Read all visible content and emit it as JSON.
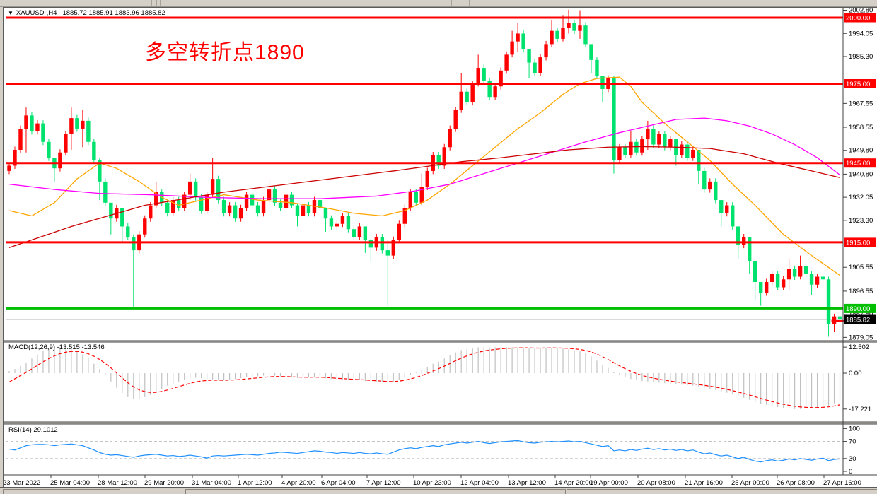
{
  "title_bar": {
    "collapse_icon": "▼",
    "symbol": "XAUUSD-,H4",
    "quotes": "1885.72 1885.91 1883.96 1885.82"
  },
  "annotation": {
    "text": "多空转折点1890",
    "color": "#FF0000"
  },
  "colors": {
    "bull": "#FF0000",
    "bear": "#00E26E",
    "ma_fast": "#FFA500",
    "ma_mid": "#FF00FF",
    "ma_slow": "#CC0000",
    "macd_hist": "#C0C0C0",
    "macd_signal": "#FF0000",
    "rsi": "#1E8FFF",
    "guide": "#BBBBBB",
    "level_red": "#FF0000",
    "level_green": "#00BE00",
    "current_line": "#B4B4B4",
    "badge_current_bg": "#000000",
    "axis_text": "#000000"
  },
  "price_axis": {
    "ticks": [
      "2002.80",
      "1994.05",
      "1985.30",
      "1967.55",
      "1958.55",
      "1949.80",
      "1940.80",
      "1932.05",
      "1923.30",
      "1905.55",
      "1896.55",
      "1887.80",
      "1879.05"
    ],
    "tick_values": [
      2002.8,
      1994.05,
      1985.3,
      1967.55,
      1958.55,
      1949.8,
      1940.8,
      1932.05,
      1923.3,
      1905.55,
      1896.55,
      1887.8,
      1879.05
    ]
  },
  "levels": [
    {
      "value": 2000.0,
      "label": "2000.00",
      "color": "#FF0000"
    },
    {
      "value": 1975.0,
      "label": "1975.00",
      "color": "#FF0000"
    },
    {
      "value": 1945.0,
      "label": "1945.00",
      "color": "#FF0000"
    },
    {
      "value": 1915.0,
      "label": "1915.00",
      "color": "#FF0000"
    },
    {
      "value": 1890.0,
      "label": "1890.00",
      "color": "#00BE00"
    }
  ],
  "current_price": {
    "value": 1885.82,
    "label": "1885.82"
  },
  "macd_panel": {
    "label": "MACD(12,26,9) -13.515 -13.546",
    "axis_labels": [
      "12.502",
      "0.00",
      "-17.221"
    ],
    "axis_values": [
      12.502,
      0,
      -17.221
    ]
  },
  "rsi_panel": {
    "label": "RSI(14) 29.1012",
    "axis_labels": [
      "100",
      "70",
      "30",
      "0"
    ],
    "axis_values": [
      100,
      70,
      30,
      0
    ],
    "guides": [
      70,
      30
    ]
  },
  "time_axis": {
    "labels": [
      [
        "23 Mar 2022",
        3
      ],
      [
        "25 Mar 04:00",
        70
      ],
      [
        "28 Mar 12:00",
        137
      ],
      [
        "29 Mar 20:00",
        203
      ],
      [
        "31 Mar 04:00",
        270
      ],
      [
        "1 Apr 12:00",
        335
      ],
      [
        "4 Apr 20:00",
        397
      ],
      [
        "6 Apr 04:00",
        453
      ],
      [
        "7 Apr 12:00",
        517
      ],
      [
        "10 Apr 23:00",
        583
      ],
      [
        "12 Apr 04:00",
        650
      ],
      [
        "13 Apr 12:00",
        717
      ],
      [
        "14 Apr 20:00",
        783
      ],
      [
        "19 Apr 00:00",
        833
      ],
      [
        "20 Apr 08:00",
        900
      ],
      [
        "21 Apr 16:00",
        967
      ],
      [
        "25 Apr 00:00",
        1033
      ],
      [
        "26 Apr 08:00",
        1097
      ],
      [
        "27 Apr 16:00",
        1163
      ]
    ]
  },
  "chart_data": {
    "type": "candlestick+indicators",
    "symbol": "XAUUSD",
    "timeframe": "H4",
    "price_range": [
      1878.8,
      2004.5
    ],
    "first_open": 1942,
    "candles_close": [
      1944,
      1950,
      1958,
      1963,
      1957,
      1960,
      1953,
      1947,
      1943,
      1949,
      1956,
      1962,
      1958,
      1961,
      1953,
      1946,
      1938,
      1930,
      1924,
      1928,
      1921,
      1917,
      1912,
      1918,
      1924,
      1929,
      1934,
      1930,
      1926,
      1931,
      1928,
      1933,
      1938,
      1932,
      1927,
      1933,
      1939,
      1931,
      1926,
      1929,
      1924,
      1928,
      1933,
      1929,
      1926,
      1931,
      1935,
      1930,
      1928,
      1933,
      1929,
      1925,
      1929,
      1926,
      1931,
      1928,
      1924,
      1921,
      1922,
      1925,
      1920,
      1917,
      1921,
      1916,
      1913,
      1917,
      1912,
      1910,
      1916,
      1922,
      1928,
      1934,
      1930,
      1936,
      1942,
      1948,
      1944,
      1951,
      1958,
      1965,
      1972,
      1968,
      1975,
      1981,
      1976,
      1970,
      1974,
      1980,
      1986,
      1991,
      1994,
      1988,
      1983,
      1979,
      1985,
      1990,
      1995,
      1992,
      1996,
      1998,
      1995,
      1997,
      1990,
      1984,
      1978,
      1973,
      1977,
      1946,
      1951,
      1948,
      1953,
      1949,
      1954,
      1958,
      1952,
      1956,
      1951,
      1954,
      1948,
      1952,
      1947,
      1950,
      1942,
      1935,
      1938,
      1931,
      1926,
      1929,
      1921,
      1914,
      1917,
      1908,
      1900,
      1896,
      1900,
      1903,
      1898,
      1901,
      1905,
      1902,
      1906,
      1903,
      1899,
      1902,
      1901,
      1884,
      1887,
      1885.8
    ],
    "wick_overrides": {
      "3": [
        1966,
        1949
      ],
      "8": [
        1944.5,
        1938
      ],
      "11": [
        1966,
        1950
      ],
      "13": [
        1965,
        1951
      ],
      "16": [
        1947,
        1931
      ],
      "18": [
        1929,
        1918
      ],
      "20": [
        1927,
        1915
      ],
      "22": [
        1918,
        1890.5
      ],
      "26": [
        1938,
        1928
      ],
      "32": [
        1941,
        1931
      ],
      "36": [
        1947,
        1932
      ],
      "46": [
        1939,
        1929
      ],
      "51": [
        1929.5,
        1921
      ],
      "56": [
        1927.5,
        1919
      ],
      "63": [
        1921,
        1911
      ],
      "64": [
        1916.5,
        1908
      ],
      "67": [
        1916,
        1891
      ],
      "73": [
        1941,
        1929
      ],
      "80": [
        1979,
        1964
      ],
      "83": [
        1986,
        1974
      ],
      "89": [
        1995,
        1985
      ],
      "90": [
        1998,
        1987
      ],
      "92": [
        1988,
        1977
      ],
      "96": [
        1999,
        1989
      ],
      "98": [
        2001,
        1991
      ],
      "99": [
        2003,
        1994
      ],
      "101": [
        2002.8,
        1992
      ],
      "103": [
        1990,
        1979
      ],
      "105": [
        1978,
        1968
      ],
      "107": [
        1978,
        1941
      ],
      "110": [
        1957,
        1947
      ],
      "113": [
        1961,
        1950
      ],
      "118": [
        1953,
        1944
      ],
      "122": [
        1948,
        1937
      ],
      "126": [
        1930,
        1921
      ],
      "129": [
        1920,
        1909
      ],
      "131": [
        1913,
        1903
      ],
      "132": [
        1905,
        1893
      ],
      "133": [
        1899,
        1891
      ],
      "138": [
        1909,
        1897
      ],
      "140": [
        1910,
        1901
      ],
      "142": [
        1904,
        1895
      ],
      "145": [
        1902,
        1879.3
      ],
      "146": [
        1888,
        1881
      ],
      "147": [
        1888,
        1883
      ]
    },
    "ma": [
      {
        "name": "ma-fast",
        "color": "#FFA500",
        "points": [
          [
            0,
            1927
          ],
          [
            4,
            1925
          ],
          [
            8,
            1930
          ],
          [
            12,
            1939
          ],
          [
            16,
            1945
          ],
          [
            19,
            1943
          ],
          [
            23,
            1938
          ],
          [
            27,
            1932
          ],
          [
            30,
            1929
          ],
          [
            34,
            1931
          ],
          [
            38,
            1933
          ],
          [
            44,
            1931
          ],
          [
            50,
            1930
          ],
          [
            56,
            1928
          ],
          [
            61,
            1926
          ],
          [
            66,
            1925
          ],
          [
            70,
            1927
          ],
          [
            74,
            1931
          ],
          [
            78,
            1937
          ],
          [
            82,
            1944
          ],
          [
            86,
            1951
          ],
          [
            90,
            1958
          ],
          [
            94,
            1964
          ],
          [
            98,
            1971
          ],
          [
            101,
            1975
          ],
          [
            104,
            1977
          ],
          [
            108,
            1977.5
          ],
          [
            110,
            1974
          ],
          [
            112,
            1968
          ],
          [
            116,
            1960
          ],
          [
            120,
            1953
          ],
          [
            124,
            1946
          ],
          [
            128,
            1937
          ],
          [
            132,
            1929
          ],
          [
            137,
            1918
          ],
          [
            142,
            1910
          ],
          [
            147,
            1902.5
          ]
        ]
      },
      {
        "name": "ma-mid",
        "color": "#FF00FF",
        "points": [
          [
            0,
            1937
          ],
          [
            8,
            1935
          ],
          [
            16,
            1933.5
          ],
          [
            25,
            1933
          ],
          [
            35,
            1932
          ],
          [
            45,
            1931.5
          ],
          [
            55,
            1931.5
          ],
          [
            65,
            1932.5
          ],
          [
            72,
            1934.5
          ],
          [
            78,
            1937
          ],
          [
            84,
            1941
          ],
          [
            90,
            1945
          ],
          [
            96,
            1949
          ],
          [
            102,
            1953
          ],
          [
            108,
            1956.5
          ],
          [
            113,
            1959
          ],
          [
            118,
            1961.5
          ],
          [
            123,
            1962
          ],
          [
            127,
            1961
          ],
          [
            131,
            1959
          ],
          [
            135,
            1956
          ],
          [
            139,
            1952
          ],
          [
            143,
            1947
          ],
          [
            147,
            1940.5
          ]
        ]
      },
      {
        "name": "ma-slow",
        "color": "#CC0000",
        "points": [
          [
            0,
            1913
          ],
          [
            11,
            1921
          ],
          [
            24,
            1929
          ],
          [
            38,
            1934
          ],
          [
            53,
            1938
          ],
          [
            68,
            1942
          ],
          [
            80,
            1945.5
          ],
          [
            87,
            1947
          ],
          [
            99,
            1950
          ],
          [
            106,
            1951
          ],
          [
            112,
            1951.2
          ],
          [
            118,
            1951
          ],
          [
            124,
            1950.5
          ],
          [
            130,
            1948.5
          ],
          [
            136,
            1945
          ],
          [
            141,
            1942.5
          ],
          [
            147,
            1939.5
          ]
        ]
      }
    ],
    "macd": [
      1,
      2,
      3.5,
      5,
      7,
      9,
      10.5,
      11.5,
      12.3,
      12.5,
      12.2,
      11.5,
      10.5,
      9,
      7,
      4.5,
      2,
      -1,
      -4,
      -7,
      -9.5,
      -11.5,
      -12.5,
      -12.2,
      -11.5,
      -10.5,
      -9,
      -7.5,
      -6,
      -5,
      -4,
      -3.2,
      -2.6,
      -2.2,
      -2.4,
      -2.8,
      -3,
      -3.3,
      -3.5,
      -3.2,
      -2.8,
      -2.4,
      -2,
      -1.8,
      -1.5,
      -1.2,
      -1,
      -1.2,
      -1.5,
      -1.8,
      -2,
      -2.3,
      -2.2,
      -2,
      -1.8,
      -2,
      -2.4,
      -2.8,
      -3.2,
      -3,
      -3.3,
      -3.6,
      -3.4,
      -3.8,
      -4.2,
      -4,
      -4.4,
      -4.6,
      -4,
      -3.2,
      -2.2,
      -1,
      0.2,
      1.5,
      3,
      4.5,
      5.5,
      7,
      8.5,
      10,
      11,
      11.5,
      12,
      12.4,
      12.5,
      12.3,
      12.4,
      12.5,
      12.5,
      12.4,
      12.5,
      12.3,
      12,
      11.8,
      12,
      12.2,
      12.3,
      12,
      11.8,
      11.5,
      11,
      10.5,
      9.5,
      8,
      6,
      4,
      2.5,
      0.5,
      -1,
      -2,
      -2.8,
      -3.4,
      -3.8,
      -4,
      -4.2,
      -4.5,
      -4.8,
      -5,
      -5.3,
      -5.5,
      -5.8,
      -6,
      -6.5,
      -7,
      -7.5,
      -8,
      -8.8,
      -9.4,
      -10.2,
      -11,
      -11.8,
      -12.8,
      -13.8,
      -14.6,
      -15.2,
      -15.8,
      -16.3,
      -16.7,
      -17,
      -17.2,
      -17.2,
      -17,
      -16.8,
      -16.5,
      -16,
      -15.5,
      -14.5,
      -13.5
    ],
    "rsi": [
      52,
      50,
      55,
      60,
      62,
      63,
      63,
      62,
      60,
      62,
      63,
      64,
      62,
      60,
      55,
      50,
      44,
      40,
      38,
      39,
      37,
      35,
      33,
      36,
      38,
      39,
      40,
      38,
      36,
      37,
      35,
      36,
      38,
      36,
      34,
      31,
      36,
      37,
      36,
      37,
      38,
      39,
      40,
      39,
      38,
      40,
      42,
      43,
      45,
      44,
      43,
      42,
      44,
      46,
      48,
      47,
      45,
      44,
      42,
      44,
      43,
      42,
      44,
      42,
      41,
      43,
      41,
      40,
      45,
      50,
      53,
      55,
      53,
      56,
      58,
      60,
      58,
      62,
      64,
      66,
      68,
      66,
      68,
      70,
      67,
      65,
      67,
      69,
      70,
      71,
      72,
      69,
      67,
      66,
      68,
      69,
      70,
      69,
      70,
      71,
      69,
      70,
      67,
      64,
      61,
      58,
      60,
      48,
      50,
      48,
      51,
      49,
      52,
      54,
      51,
      53,
      50,
      52,
      49,
      51,
      48,
      50,
      45,
      41,
      43,
      39,
      36,
      38,
      34,
      30,
      33,
      28,
      24,
      22,
      25,
      27,
      24,
      26,
      29,
      27,
      30,
      28,
      26,
      29,
      31,
      25,
      28,
      29.1
    ]
  }
}
